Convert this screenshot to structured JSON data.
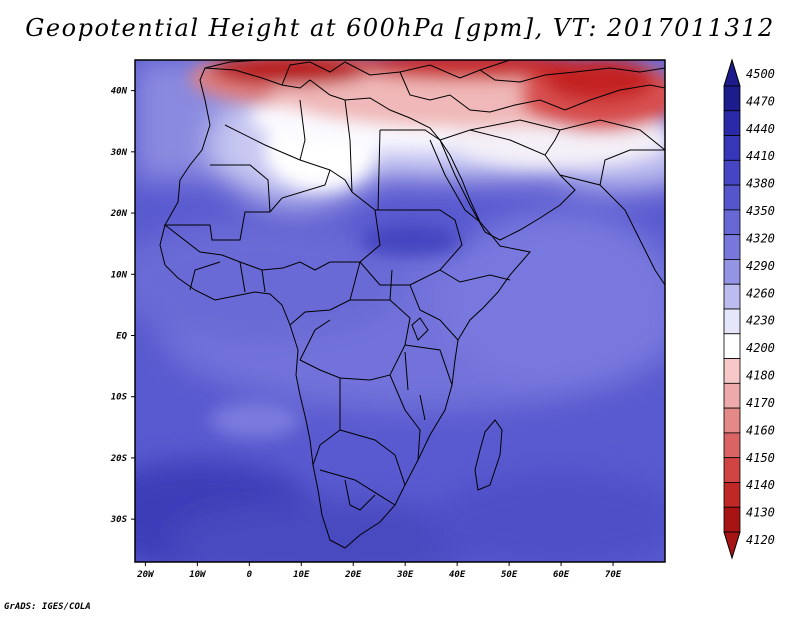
{
  "title": "Geopotential Height at 600hPa [gpm], VT: 2017011312",
  "credit": "GrADS: IGES/COLA",
  "map": {
    "lat_labels": [
      "40N",
      "30N",
      "20N",
      "10N",
      "EQ",
      "10S",
      "20S",
      "30S"
    ],
    "lat_values": [
      40,
      30,
      20,
      10,
      0,
      -10,
      -20,
      -30
    ],
    "lon_labels": [
      "20W",
      "10W",
      "0",
      "10E",
      "20E",
      "30E",
      "40E",
      "50E",
      "60E",
      "70E"
    ],
    "lon_values": [
      -20,
      -10,
      0,
      10,
      20,
      30,
      40,
      50,
      60,
      70
    ],
    "lat_range": [
      -37,
      45
    ],
    "lon_range": [
      -22,
      80
    ],
    "field": "Geopotential Height at 600hPa",
    "units": "gpm"
  },
  "colorbar": {
    "labels": [
      "4500",
      "4470",
      "4440",
      "4410",
      "4380",
      "4350",
      "4320",
      "4290",
      "4260",
      "4230",
      "4200",
      "4180",
      "4170",
      "4160",
      "4150",
      "4140",
      "4130",
      "4120"
    ],
    "colors": [
      "#1c1c8c",
      "#2a2aa8",
      "#3636b8",
      "#4646c4",
      "#5656cc",
      "#6868d4",
      "#7878dc",
      "#9494e4",
      "#bcbcf0",
      "#e6e6fa",
      "#ffffff",
      "#f6c8c8",
      "#eeaaaa",
      "#e48888",
      "#da6464",
      "#d04444",
      "#c02828",
      "#a81414"
    ]
  }
}
